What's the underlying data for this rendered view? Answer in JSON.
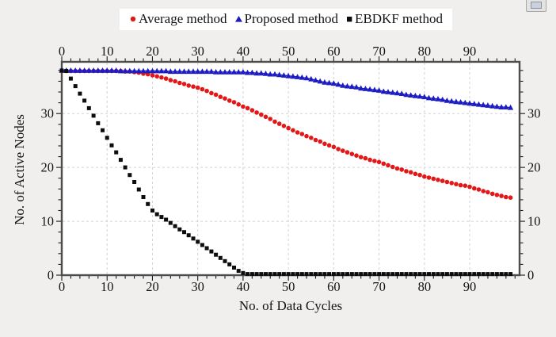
{
  "chart_data": {
    "type": "scatter",
    "title": "",
    "xlabel": "No. of Data Cycles",
    "ylabel": "No. of Active Nodes",
    "xlim": [
      0,
      101
    ],
    "ylim": [
      0,
      39.6
    ],
    "x_ticks": [
      0,
      10,
      20,
      30,
      40,
      50,
      60,
      70,
      80,
      90
    ],
    "y_ticks": [
      0,
      10,
      20,
      30
    ],
    "minor_tick_step": 2,
    "grid": true,
    "grid_color": "#d2d2d2",
    "frame_color": "#4d4d4d",
    "plot_background": "#ffffff",
    "page_background": "#f0efed",
    "legend_position": "top-center",
    "x": [
      0,
      1,
      2,
      3,
      4,
      5,
      6,
      7,
      8,
      9,
      10,
      11,
      12,
      13,
      14,
      15,
      16,
      17,
      18,
      19,
      20,
      21,
      22,
      23,
      24,
      25,
      26,
      27,
      28,
      29,
      30,
      31,
      32,
      33,
      34,
      35,
      36,
      37,
      38,
      39,
      40,
      41,
      42,
      43,
      44,
      45,
      46,
      47,
      48,
      49,
      50,
      51,
      52,
      53,
      54,
      55,
      56,
      57,
      58,
      59,
      60,
      61,
      62,
      63,
      64,
      65,
      66,
      67,
      68,
      69,
      70,
      71,
      72,
      73,
      74,
      75,
      76,
      77,
      78,
      79,
      80,
      81,
      82,
      83,
      84,
      85,
      86,
      87,
      88,
      89,
      90,
      91,
      92,
      93,
      94,
      95,
      96,
      97,
      98,
      99
    ],
    "series": [
      {
        "name": "Average method",
        "color": "#e21717",
        "marker": "circle",
        "line": false,
        "values": [
          37.9,
          37.9,
          37.9,
          37.9,
          37.9,
          37.9,
          37.9,
          37.9,
          37.9,
          37.9,
          37.9,
          37.9,
          37.9,
          37.9,
          37.8,
          37.8,
          37.7,
          37.6,
          37.4,
          37.3,
          37.1,
          36.9,
          36.7,
          36.5,
          36.2,
          36.0,
          35.7,
          35.5,
          35.2,
          35.0,
          34.8,
          34.5,
          34.2,
          33.8,
          33.5,
          33.1,
          32.8,
          32.4,
          32.1,
          31.7,
          31.3,
          31.0,
          30.6,
          30.2,
          29.8,
          29.4,
          29.0,
          28.5,
          28.1,
          27.7,
          27.3,
          26.9,
          26.5,
          26.2,
          25.8,
          25.5,
          25.1,
          24.8,
          24.4,
          24.1,
          23.8,
          23.4,
          23.1,
          22.8,
          22.5,
          22.2,
          21.9,
          21.7,
          21.4,
          21.2,
          21.0,
          20.7,
          20.4,
          20.1,
          19.8,
          19.6,
          19.3,
          19.1,
          18.8,
          18.6,
          18.3,
          18.1,
          17.9,
          17.7,
          17.5,
          17.3,
          17.1,
          16.9,
          16.7,
          16.6,
          16.4,
          16.1,
          15.9,
          15.6,
          15.4,
          15.1,
          14.9,
          14.7,
          14.5,
          14.4
        ]
      },
      {
        "name": "Proposed method",
        "color": "#1c1cc2",
        "marker": "triangle",
        "line": true,
        "values": [
          38.0,
          38.0,
          38.0,
          38.0,
          38.0,
          38.0,
          38.0,
          38.0,
          38.0,
          38.0,
          38.0,
          38.0,
          38.0,
          37.9,
          37.9,
          37.9,
          37.9,
          37.9,
          37.9,
          37.9,
          37.9,
          37.9,
          37.9,
          37.9,
          37.8,
          37.8,
          37.8,
          37.8,
          37.8,
          37.8,
          37.8,
          37.8,
          37.8,
          37.8,
          37.7,
          37.7,
          37.7,
          37.7,
          37.7,
          37.7,
          37.7,
          37.6,
          37.6,
          37.5,
          37.5,
          37.4,
          37.3,
          37.3,
          37.2,
          37.1,
          37.0,
          36.9,
          36.8,
          36.7,
          36.6,
          36.4,
          36.2,
          36.0,
          35.8,
          35.7,
          35.6,
          35.4,
          35.2,
          35.1,
          35.0,
          34.9,
          34.7,
          34.6,
          34.5,
          34.4,
          34.3,
          34.1,
          34.0,
          33.9,
          33.8,
          33.7,
          33.5,
          33.4,
          33.3,
          33.2,
          33.1,
          32.9,
          32.8,
          32.7,
          32.6,
          32.4,
          32.3,
          32.2,
          32.1,
          32.0,
          31.9,
          31.8,
          31.7,
          31.6,
          31.5,
          31.4,
          31.3,
          31.2,
          31.2,
          31.1
        ]
      },
      {
        "name": "EBDKF method",
        "color": "#0d0d0d",
        "marker": "square",
        "line": false,
        "values": [
          38.0,
          37.9,
          36.5,
          35.1,
          33.7,
          32.4,
          31.0,
          29.6,
          28.2,
          26.9,
          25.5,
          24.1,
          22.8,
          21.4,
          20.0,
          18.6,
          17.3,
          15.9,
          14.5,
          13.2,
          12.0,
          11.3,
          10.8,
          10.3,
          9.7,
          9.1,
          8.5,
          8.0,
          7.4,
          6.8,
          6.2,
          5.6,
          5.0,
          4.4,
          3.8,
          3.2,
          2.6,
          2.0,
          1.4,
          0.8,
          0.4,
          0.2,
          0.2,
          0.2,
          0.2,
          0.2,
          0.2,
          0.2,
          0.2,
          0.2,
          0.2,
          0.2,
          0.2,
          0.2,
          0.2,
          0.2,
          0.2,
          0.2,
          0.2,
          0.2,
          0.2,
          0.2,
          0.2,
          0.2,
          0.2,
          0.2,
          0.2,
          0.2,
          0.2,
          0.2,
          0.2,
          0.2,
          0.2,
          0.2,
          0.2,
          0.2,
          0.2,
          0.2,
          0.2,
          0.2,
          0.2,
          0.2,
          0.2,
          0.2,
          0.2,
          0.2,
          0.2,
          0.2,
          0.2,
          0.2,
          0.2,
          0.2,
          0.2,
          0.2,
          0.2,
          0.2,
          0.2,
          0.2,
          0.2,
          0.2
        ]
      }
    ]
  },
  "corner_button": {
    "icon": "window-control"
  }
}
